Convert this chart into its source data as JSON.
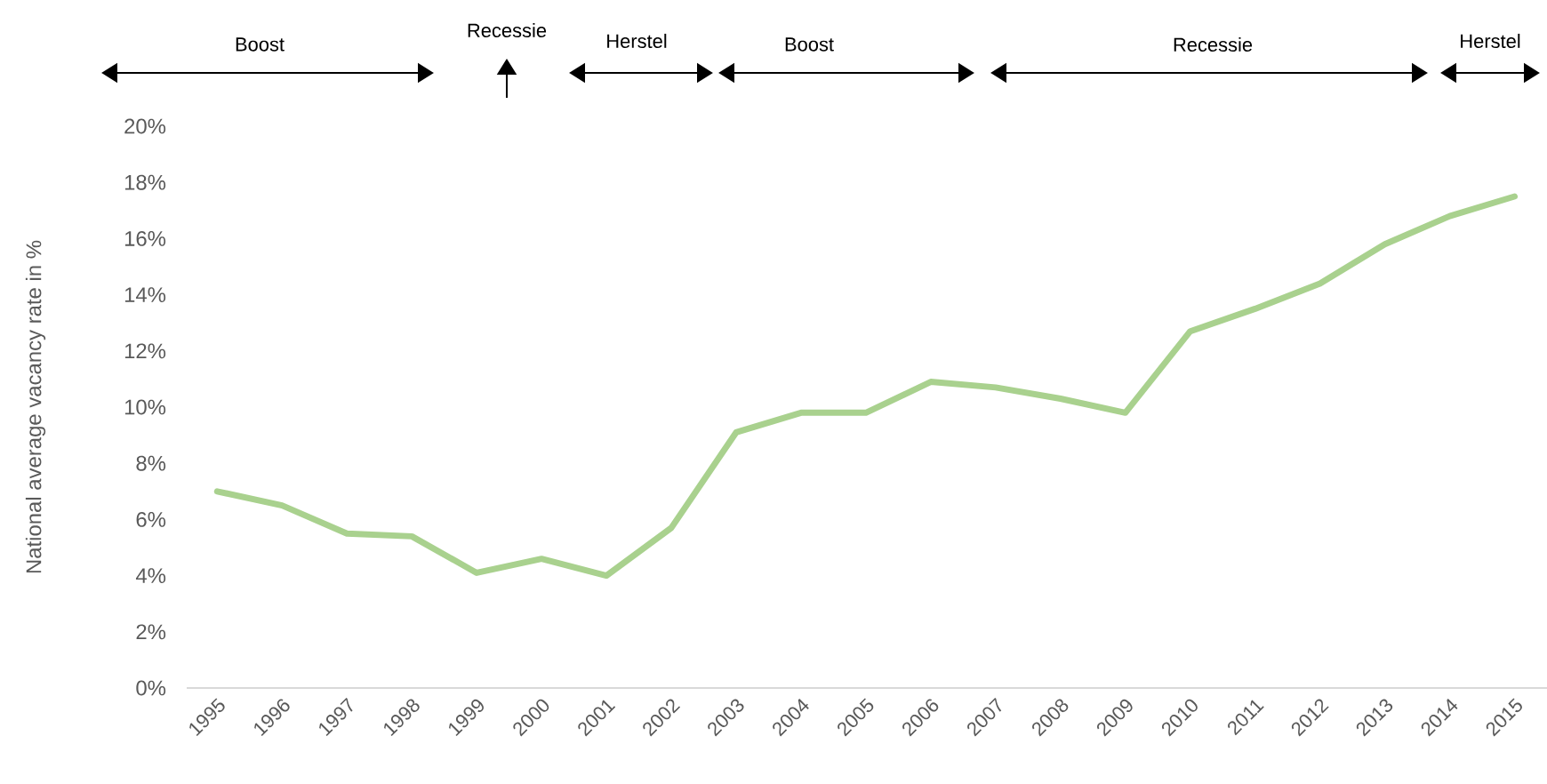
{
  "chart_data": {
    "type": "line",
    "ylabel": "National average vacancy rate in %",
    "categories": [
      "1995",
      "1996",
      "1997",
      "1998",
      "1999",
      "2000",
      "2001",
      "2002",
      "2003",
      "2004",
      "2005",
      "2006",
      "2007",
      "2008",
      "2009",
      "2010",
      "2011",
      "2012",
      "2013",
      "2014",
      "2015"
    ],
    "values": [
      7.0,
      6.5,
      5.5,
      5.4,
      4.1,
      4.6,
      4.0,
      5.7,
      9.1,
      9.8,
      9.8,
      10.9,
      10.7,
      10.3,
      9.8,
      12.7,
      13.5,
      14.4,
      15.8,
      16.8,
      17.5
    ],
    "color": "#a9d18e",
    "ylim": [
      0,
      20
    ],
    "yticks": [
      {
        "value": 0,
        "label": "0%"
      },
      {
        "value": 2,
        "label": "2%"
      },
      {
        "value": 4,
        "label": "4%"
      },
      {
        "value": 6,
        "label": "6%"
      },
      {
        "value": 8,
        "label": "8%"
      },
      {
        "value": 10,
        "label": "10%"
      },
      {
        "value": 12,
        "label": "12%"
      },
      {
        "value": 14,
        "label": "14%"
      },
      {
        "value": 16,
        "label": "16%"
      },
      {
        "value": 18,
        "label": "18%"
      },
      {
        "value": 20,
        "label": "20%"
      }
    ],
    "annotations": [
      "Boost",
      "Recessie",
      "Herstel",
      "Boost",
      "Recessie",
      "Herstel"
    ]
  }
}
